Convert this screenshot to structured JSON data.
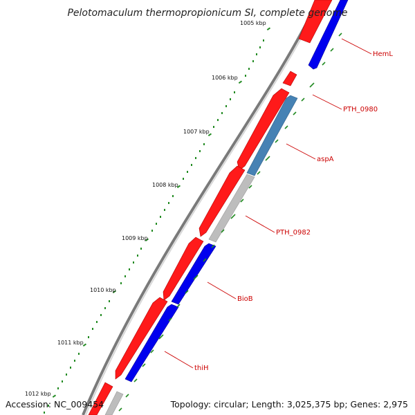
{
  "title": "Pelotomaculum thermopropionicum SI, complete genome",
  "ticks": [
    {
      "label": "1005 kbp"
    },
    {
      "label": "1006 kbp"
    },
    {
      "label": "1007 kbp"
    },
    {
      "label": "1008 kbp"
    },
    {
      "label": "1009 kbp"
    },
    {
      "label": "1010 kbp"
    },
    {
      "label": "1011 kbp"
    },
    {
      "label": "1012 kbp"
    }
  ],
  "genes": [
    {
      "label": "HemL"
    },
    {
      "label": "PTH_0980"
    },
    {
      "label": "aspA"
    },
    {
      "label": "PTH_0982"
    },
    {
      "label": "BioB"
    },
    {
      "label": "thiH"
    }
  ],
  "colors": {
    "forward_cds": "#ff1a1a",
    "reverse_cds": "#0000ee",
    "steelblue_cds": "#4682b4",
    "gray_cds": "#bdbdbd",
    "backbone": "#7a7a7a",
    "tick": "#228b22",
    "gene_label": "#cc0000"
  },
  "footer": {
    "accession": "Accession: NC_009454",
    "summary": "Topology: circular; Length: 3,025,375 bp; Genes: 2,975"
  }
}
